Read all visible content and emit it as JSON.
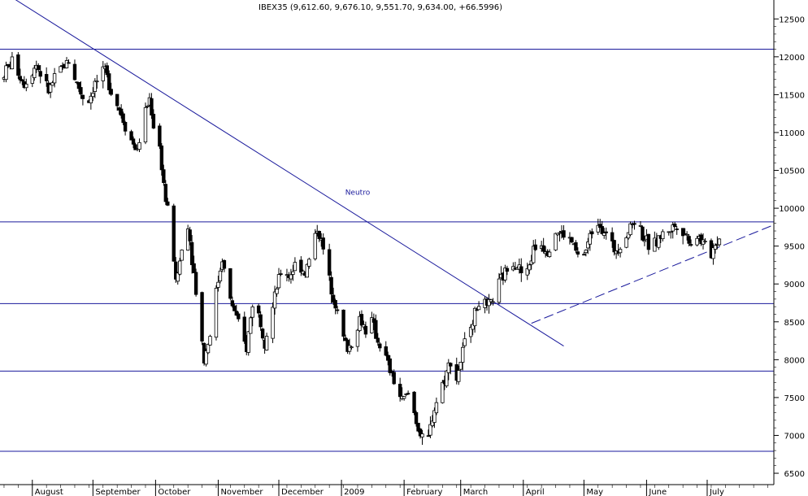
{
  "chart_data": {
    "type": "candlestick",
    "title": "IBEX35 (9,612.60, 9,676.10, 9,551.70, 9,634.00, +66.5996)",
    "xlabel": "",
    "ylabel": "",
    "ylim": [
      6350,
      12750
    ],
    "y_ticks": [
      6500,
      7000,
      7500,
      8000,
      8500,
      9000,
      9500,
      10000,
      10500,
      11000,
      11500,
      12000,
      12500
    ],
    "months": [
      {
        "label": "August",
        "day": 0
      },
      {
        "label": "September",
        "day": 30
      },
      {
        "label": "October",
        "day": 61
      },
      {
        "label": "November",
        "day": 92
      },
      {
        "label": "December",
        "day": 122
      },
      {
        "label": "2009",
        "day": 153
      },
      {
        "label": "February",
        "day": 184
      },
      {
        "label": "March",
        "day": 212
      },
      {
        "label": "April",
        "day": 243
      },
      {
        "label": "May",
        "day": 273
      },
      {
        "label": "June",
        "day": 304
      },
      {
        "label": "July",
        "day": 334
      }
    ],
    "x_range_days": [
      -16,
      367
    ],
    "horizontal_levels": [
      12100,
      9820,
      8740,
      7850,
      6790
    ],
    "trendlines": [
      {
        "name": "downtrend",
        "style": "solid",
        "from": {
          "day": -14,
          "value": 12850
        },
        "to": {
          "day": 263,
          "value": 8180
        }
      },
      {
        "name": "uptrend",
        "style": "dashed",
        "from": {
          "day": 247,
          "value": 8480
        },
        "to": {
          "day": 366,
          "value": 9770
        }
      }
    ],
    "annotations": [
      {
        "text": "Neutro",
        "day": 161,
        "value": 10180
      }
    ],
    "anchors": [
      [
        -16,
        11700
      ],
      [
        -10,
        11950
      ],
      [
        -4,
        11650
      ],
      [
        2,
        11900
      ],
      [
        8,
        11550
      ],
      [
        13,
        11800
      ],
      [
        18,
        11950
      ],
      [
        22,
        11650
      ],
      [
        27,
        11350
      ],
      [
        31,
        11650
      ],
      [
        36,
        11800
      ],
      [
        40,
        11500
      ],
      [
        44,
        11250
      ],
      [
        48,
        10950
      ],
      [
        52,
        10750
      ],
      [
        55,
        11200
      ],
      [
        58,
        11450
      ],
      [
        60,
        11100
      ],
      [
        63,
        10800
      ],
      [
        66,
        10100
      ],
      [
        69,
        9700
      ],
      [
        71,
        9000
      ],
      [
        74,
        9450
      ],
      [
        77,
        9800
      ],
      [
        79,
        9350
      ],
      [
        82,
        8700
      ],
      [
        85,
        8000
      ],
      [
        88,
        8350
      ],
      [
        91,
        8900
      ],
      [
        94,
        9350
      ],
      [
        97,
        8850
      ],
      [
        100,
        8650
      ],
      [
        103,
        8350
      ],
      [
        106,
        8150
      ],
      [
        109,
        8750
      ],
      [
        112,
        8600
      ],
      [
        115,
        8250
      ],
      [
        118,
        8550
      ],
      [
        121,
        8950
      ],
      [
        124,
        9250
      ],
      [
        127,
        9100
      ],
      [
        131,
        9300
      ],
      [
        135,
        9150
      ],
      [
        138,
        9400
      ],
      [
        141,
        9750
      ],
      [
        144,
        9450
      ],
      [
        147,
        9050
      ],
      [
        150,
        8750
      ],
      [
        153,
        8350
      ],
      [
        156,
        8150
      ],
      [
        159,
        8250
      ],
      [
        162,
        8550
      ],
      [
        165,
        8400
      ],
      [
        168,
        8500
      ],
      [
        171,
        8250
      ],
      [
        174,
        8100
      ],
      [
        177,
        7850
      ],
      [
        180,
        7650
      ],
      [
        183,
        7450
      ],
      [
        186,
        7550
      ],
      [
        189,
        7300
      ],
      [
        192,
        7000
      ],
      [
        195,
        6800
      ],
      [
        198,
        7250
      ],
      [
        201,
        7550
      ],
      [
        204,
        7750
      ],
      [
        207,
        8000
      ],
      [
        210,
        7750
      ],
      [
        213,
        8100
      ],
      [
        216,
        8450
      ],
      [
        219,
        8600
      ],
      [
        222,
        8850
      ],
      [
        225,
        8650
      ],
      [
        228,
        8800
      ],
      [
        231,
        9000
      ],
      [
        234,
        9150
      ],
      [
        237,
        9350
      ],
      [
        240,
        9250
      ],
      [
        244,
        9050
      ],
      [
        248,
        9450
      ],
      [
        251,
        9550
      ],
      [
        255,
        9450
      ],
      [
        259,
        9700
      ],
      [
        263,
        9650
      ],
      [
        267,
        9550
      ],
      [
        271,
        9300
      ],
      [
        274,
        9450
      ],
      [
        277,
        9700
      ],
      [
        280,
        9850
      ],
      [
        284,
        9650
      ],
      [
        288,
        9450
      ],
      [
        292,
        9550
      ],
      [
        296,
        9750
      ],
      [
        299,
        9900
      ],
      [
        302,
        9650
      ],
      [
        306,
        9450
      ],
      [
        310,
        9600
      ],
      [
        314,
        9700
      ],
      [
        320,
        9800
      ],
      [
        326,
        9550
      ],
      [
        329,
        9650
      ],
      [
        333,
        9500
      ],
      [
        336,
        9400
      ],
      [
        338,
        9550
      ],
      [
        341,
        9634
      ]
    ],
    "grid": false,
    "legend": "none"
  }
}
